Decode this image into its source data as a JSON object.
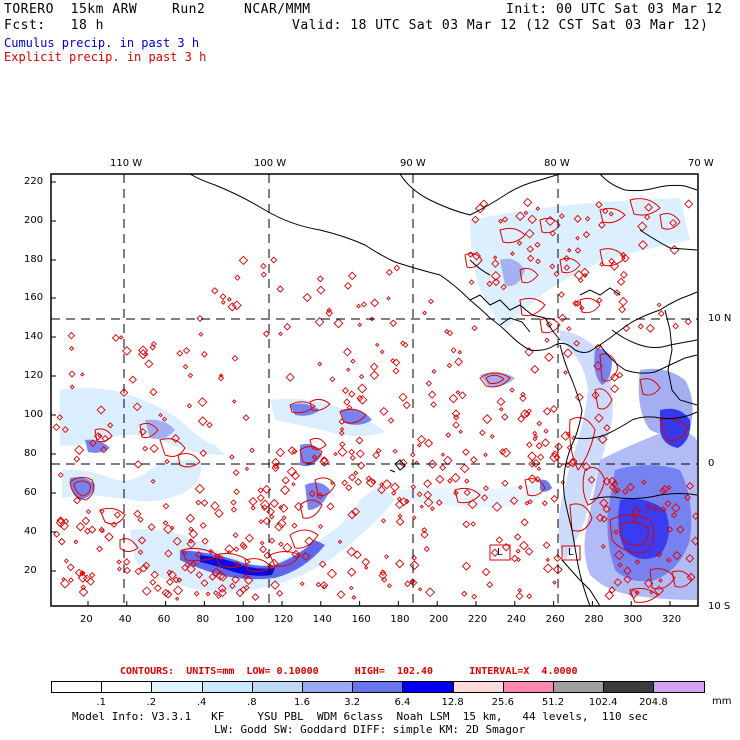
{
  "header": {
    "model": "TORERO  15km ARW",
    "run": "Run2",
    "org": "NCAR/MMM",
    "init": "Init: 00 UTC Sat 03 Mar 12",
    "fcst": "Fcst:   18 h",
    "valid": "Valid: 18 UTC Sat 03 Mar 12 (12 CST Sat 03 Mar 12)"
  },
  "legend": {
    "cumulus": "Cumulus precip. in past 3 h",
    "explicit": "Explicit precip. in past 3 h"
  },
  "map": {
    "lon_labels": [
      "110 W",
      "100 W",
      "90 W",
      "80 W",
      "70 W"
    ],
    "lat_labels": [
      "10 N",
      "0",
      "10 S"
    ],
    "y_ticks": [
      "220",
      "200",
      "180",
      "160",
      "140",
      "120",
      "100",
      "80",
      "60",
      "40",
      "20"
    ],
    "x_ticks": [
      "20",
      "40",
      "60",
      "80",
      "100",
      "120",
      "140",
      "160",
      "180",
      "200",
      "220",
      "240",
      "260",
      "280",
      "300",
      "320"
    ],
    "box_markers": [
      "L",
      "L"
    ]
  },
  "contours": {
    "text": "CONTOURS:  UNITS=mm  LOW= 0.10000      HIGH=  102.40      INTERVAL=X  4.0000"
  },
  "colorbar": {
    "labels": [
      ".1",
      ".2",
      ".4",
      ".8",
      "1.6",
      "3.2",
      "6.4",
      "12.8",
      "25.6",
      "51.2",
      "102.4",
      "204.8"
    ],
    "unit": "mm",
    "colors": [
      "#ffffff",
      "#ffffff",
      "#e0f4ff",
      "#c8ecff",
      "#c0d8f8",
      "#9aaaf0",
      "#6a74ec",
      "#0000f0",
      "#ffdada",
      "#ff88b0",
      "#a0a0a0",
      "#3c3c3c",
      "#d8a0f8"
    ]
  },
  "model_info": {
    "line1": "Model Info: V3.3.1   KF     YSU PBL  WDM 6class  Noah LSM  15 km,   44 levels,  110 sec",
    "line2": "LW: Godd SW: Goddard DIFF: simple KM: 2D Smagor"
  }
}
